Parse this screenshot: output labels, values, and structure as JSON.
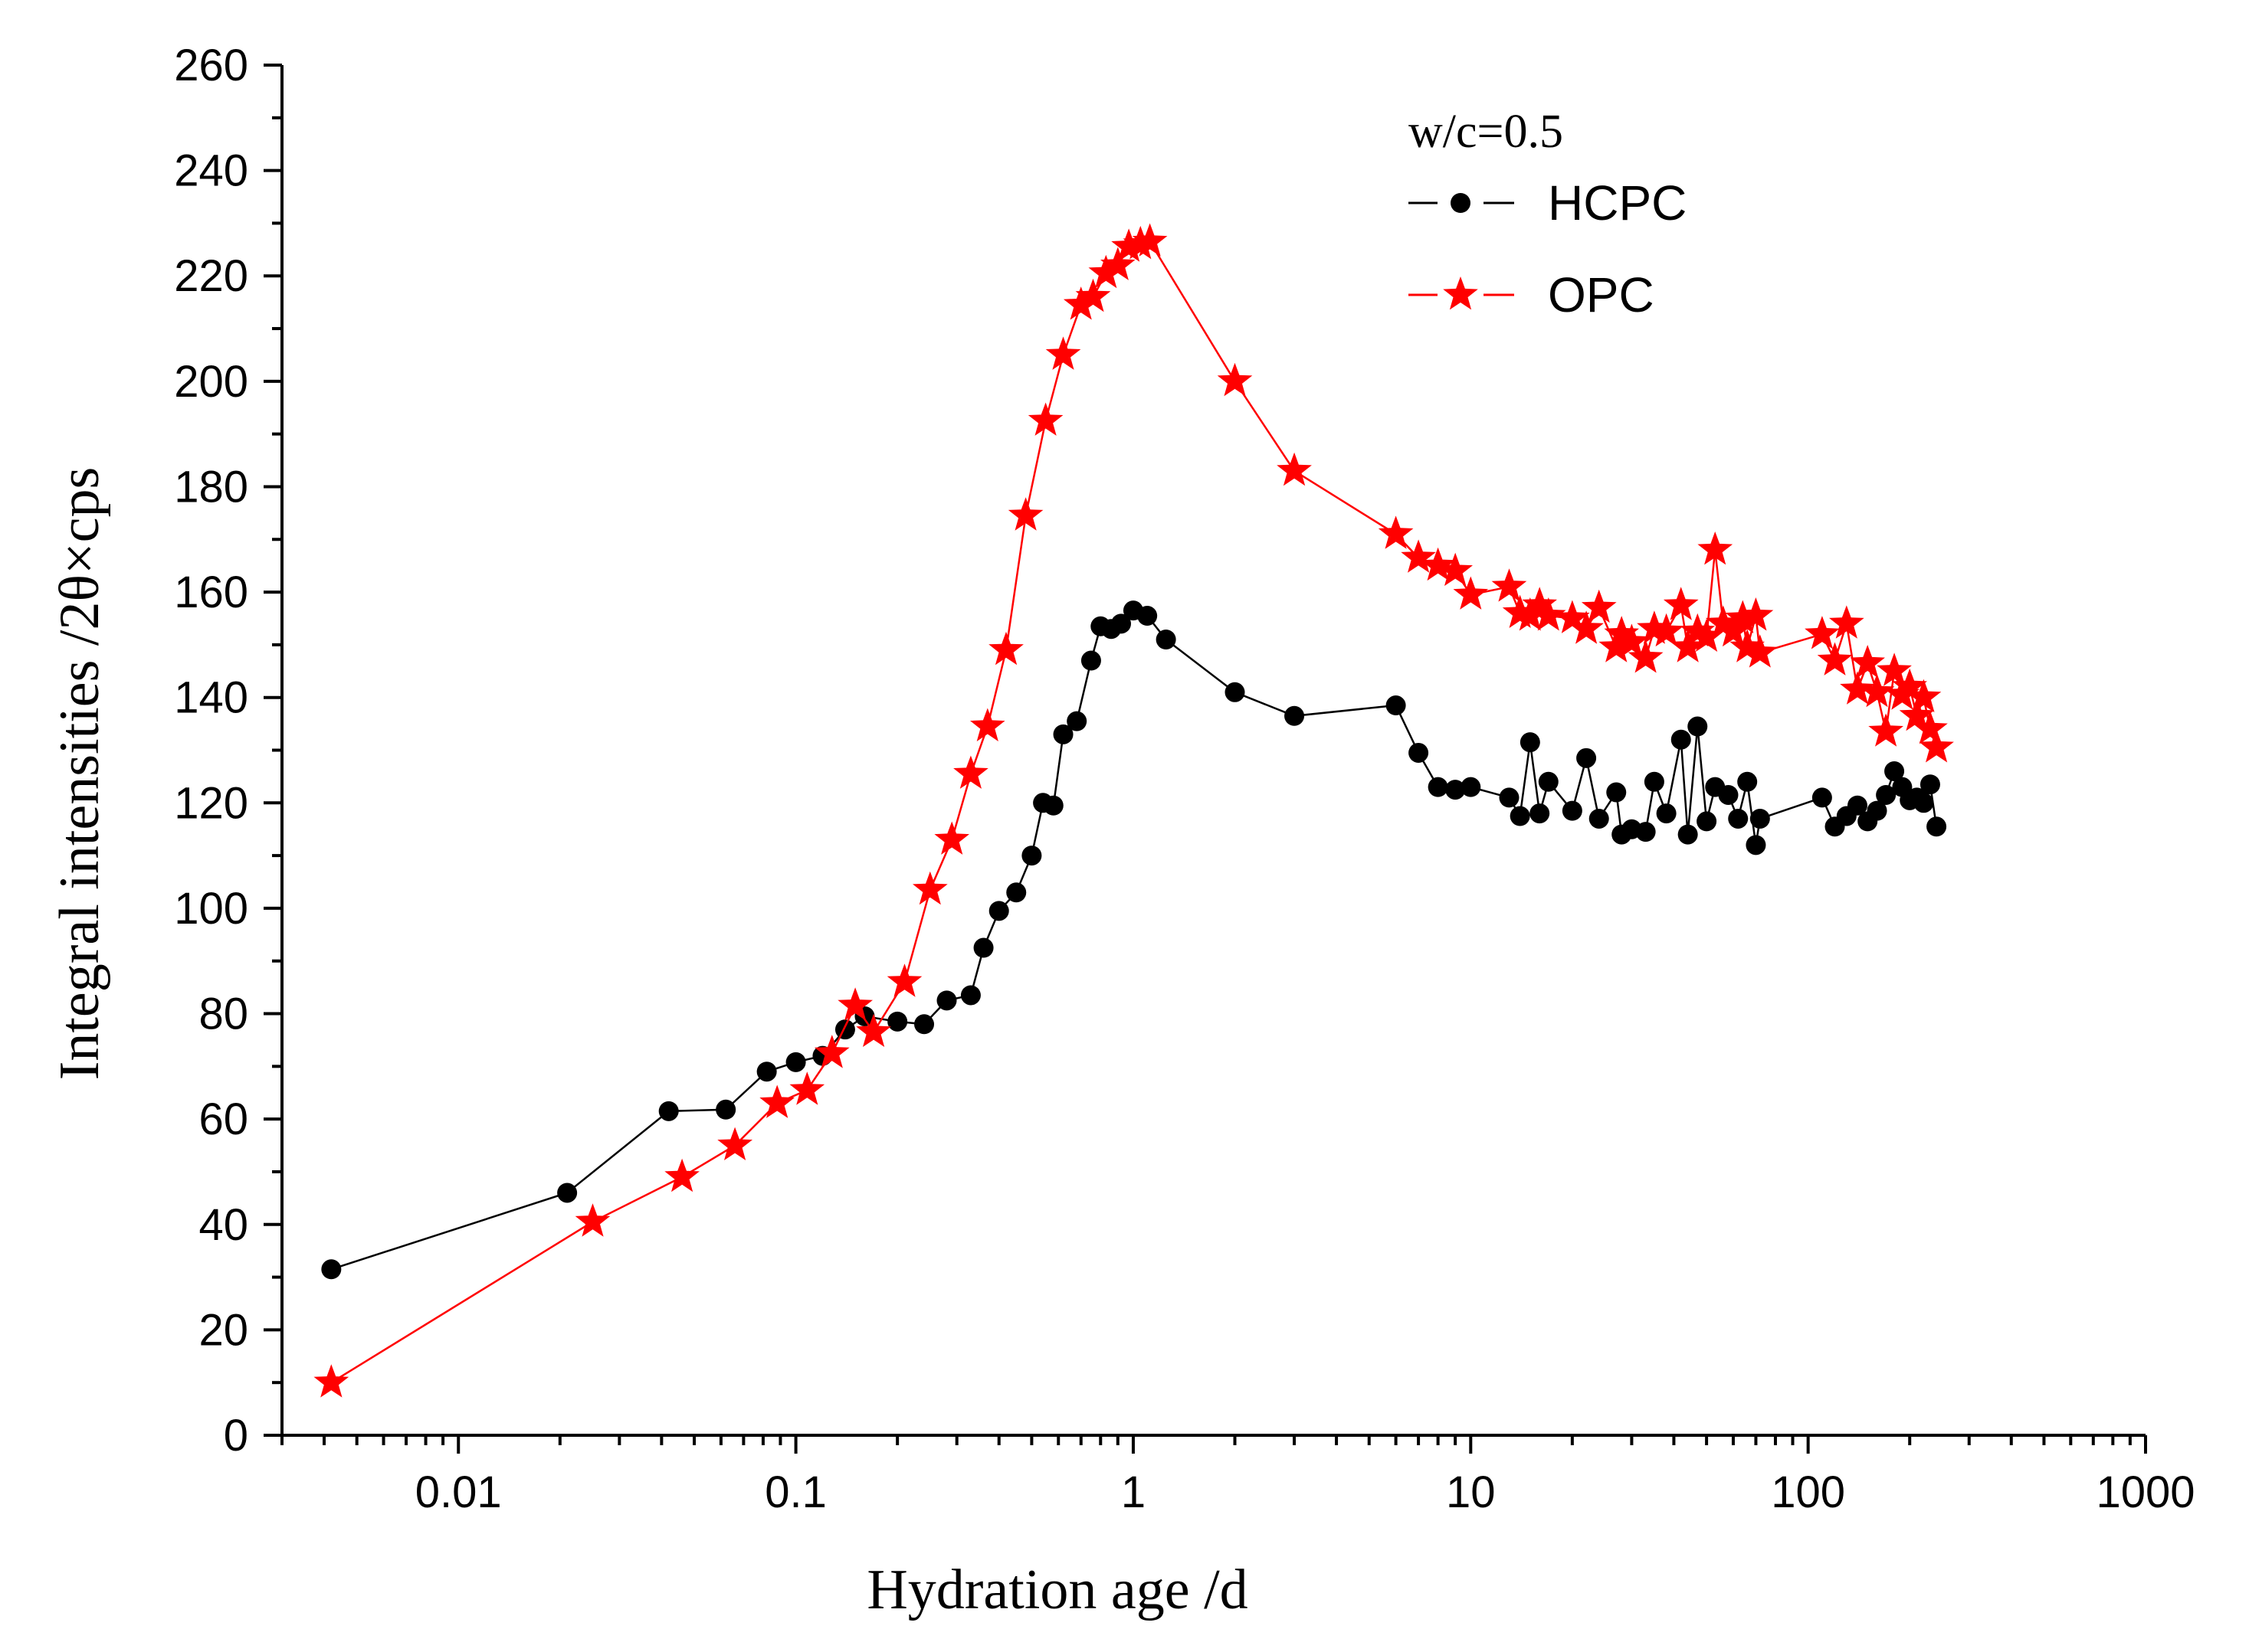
{
  "chart_data": {
    "type": "line",
    "title": "",
    "xlabel": "Hydration age /d",
    "ylabel": "Integral intensities /2θ×cps",
    "x_scale": "log",
    "xlim": [
      0.003,
      1000
    ],
    "ylim": [
      0,
      260
    ],
    "x_ticks": [
      0.01,
      0.1,
      1,
      10,
      100,
      1000
    ],
    "x_tick_labels": [
      "0.01",
      "0.1",
      "1",
      "10",
      "100",
      "1000"
    ],
    "y_ticks": [
      0,
      20,
      40,
      60,
      80,
      100,
      120,
      140,
      160,
      180,
      200,
      220,
      240,
      260
    ],
    "y_tick_labels": [
      "0",
      "20",
      "40",
      "60",
      "80",
      "100",
      "120",
      "140",
      "160",
      "180",
      "200",
      "220",
      "240",
      "260"
    ],
    "legend_title": "w/c=0.5",
    "legend_position": "top-right",
    "series": [
      {
        "name": "HCPC",
        "color": "#000000",
        "marker": "circle",
        "points": [
          [
            0.0042,
            31.5
          ],
          [
            0.021,
            46
          ],
          [
            0.042,
            61.5
          ],
          [
            0.062,
            61.8
          ],
          [
            0.082,
            69
          ],
          [
            0.1,
            70.8
          ],
          [
            0.12,
            72
          ],
          [
            0.14,
            77
          ],
          [
            0.16,
            79.5
          ],
          [
            0.2,
            78.5
          ],
          [
            0.24,
            78
          ],
          [
            0.28,
            82.5
          ],
          [
            0.33,
            83.5
          ],
          [
            0.36,
            92.5
          ],
          [
            0.4,
            99.5
          ],
          [
            0.45,
            103
          ],
          [
            0.5,
            110
          ],
          [
            0.54,
            120
          ],
          [
            0.58,
            119.5
          ],
          [
            0.62,
            133
          ],
          [
            0.68,
            135.5
          ],
          [
            0.75,
            147
          ],
          [
            0.8,
            153.5
          ],
          [
            0.86,
            153
          ],
          [
            0.92,
            154
          ],
          [
            1.0,
            156.5
          ],
          [
            1.1,
            155.5
          ],
          [
            1.25,
            151
          ],
          [
            2.0,
            141
          ],
          [
            3.0,
            136.5
          ],
          [
            6.0,
            138.5
          ],
          [
            7.0,
            129.5
          ],
          [
            8.0,
            123
          ],
          [
            9.0,
            122.5
          ],
          [
            10.0,
            123
          ],
          [
            13.0,
            121
          ],
          [
            14.0,
            117.5
          ],
          [
            15.0,
            131.5
          ],
          [
            16.0,
            118
          ],
          [
            17.0,
            124
          ],
          [
            20.0,
            118.5
          ],
          [
            22.0,
            128.5
          ],
          [
            24.0,
            117
          ],
          [
            27.0,
            122
          ],
          [
            28.0,
            114
          ],
          [
            30.0,
            115
          ],
          [
            33.0,
            114.5
          ],
          [
            35.0,
            124
          ],
          [
            38.0,
            118
          ],
          [
            42.0,
            132
          ],
          [
            44.0,
            114
          ],
          [
            47.0,
            134.5
          ],
          [
            50.0,
            116.5
          ],
          [
            53.0,
            123
          ],
          [
            58.0,
            121.5
          ],
          [
            62.0,
            117
          ],
          [
            66.0,
            124
          ],
          [
            70.0,
            112
          ],
          [
            72.0,
            117
          ],
          [
            110.0,
            121
          ],
          [
            120.0,
            115.5
          ],
          [
            130.0,
            117.5
          ],
          [
            140.0,
            119.5
          ],
          [
            150.0,
            116.5
          ],
          [
            160.0,
            118.5
          ],
          [
            170.0,
            121.5
          ],
          [
            180.0,
            126
          ],
          [
            190.0,
            123
          ],
          [
            200.0,
            120.5
          ],
          [
            210.0,
            121
          ],
          [
            220.0,
            120
          ],
          [
            230.0,
            123.5
          ],
          [
            240.0,
            115.5
          ]
        ]
      },
      {
        "name": "OPC",
        "color": "#ff0000",
        "marker": "star",
        "points": [
          [
            0.0042,
            10
          ],
          [
            0.025,
            40.5
          ],
          [
            0.046,
            49
          ],
          [
            0.066,
            55
          ],
          [
            0.088,
            63
          ],
          [
            0.108,
            65.5
          ],
          [
            0.128,
            72.5
          ],
          [
            0.15,
            81.5
          ],
          [
            0.17,
            76.5
          ],
          [
            0.21,
            86
          ],
          [
            0.25,
            103.5
          ],
          [
            0.29,
            113
          ],
          [
            0.33,
            125.5
          ],
          [
            0.37,
            134.5
          ],
          [
            0.42,
            149
          ],
          [
            0.48,
            174.5
          ],
          [
            0.55,
            192.5
          ],
          [
            0.62,
            205
          ],
          [
            0.7,
            214.5
          ],
          [
            0.76,
            216
          ],
          [
            0.83,
            220.5
          ],
          [
            0.9,
            222
          ],
          [
            0.97,
            225.5
          ],
          [
            1.05,
            226
          ],
          [
            1.12,
            226.5
          ],
          [
            2.0,
            200
          ],
          [
            3.0,
            183
          ],
          [
            6.0,
            171
          ],
          [
            7.0,
            166.5
          ],
          [
            8.0,
            165
          ],
          [
            9.0,
            164
          ],
          [
            10.0,
            159.5
          ],
          [
            13.0,
            161
          ],
          [
            14.0,
            156
          ],
          [
            15.0,
            155.5
          ],
          [
            16.0,
            157.5
          ],
          [
            17.0,
            155.5
          ],
          [
            20.0,
            155
          ],
          [
            22.0,
            153
          ],
          [
            24.0,
            157
          ],
          [
            27.0,
            149.5
          ],
          [
            28.0,
            152
          ],
          [
            30.0,
            150.5
          ],
          [
            33.0,
            147.5
          ],
          [
            35.0,
            153
          ],
          [
            38.0,
            152.5
          ],
          [
            42.0,
            157.5
          ],
          [
            44.0,
            149.5
          ],
          [
            47.0,
            152.5
          ],
          [
            50.0,
            151.5
          ],
          [
            53.0,
            168
          ],
          [
            56.0,
            154
          ],
          [
            60.0,
            152.5
          ],
          [
            64.0,
            155
          ],
          [
            66.0,
            149.5
          ],
          [
            70.0,
            155.5
          ],
          [
            72.0,
            148.5
          ],
          [
            110.0,
            152
          ],
          [
            120.0,
            147
          ],
          [
            130.0,
            154
          ],
          [
            140.0,
            141.5
          ],
          [
            150.0,
            146.5
          ],
          [
            160.0,
            141
          ],
          [
            170.0,
            133.5
          ],
          [
            180.0,
            145
          ],
          [
            190.0,
            140.5
          ],
          [
            200.0,
            142
          ],
          [
            210.0,
            136.5
          ],
          [
            220.0,
            140
          ],
          [
            230.0,
            134
          ],
          [
            240.0,
            130.5
          ]
        ]
      }
    ]
  }
}
